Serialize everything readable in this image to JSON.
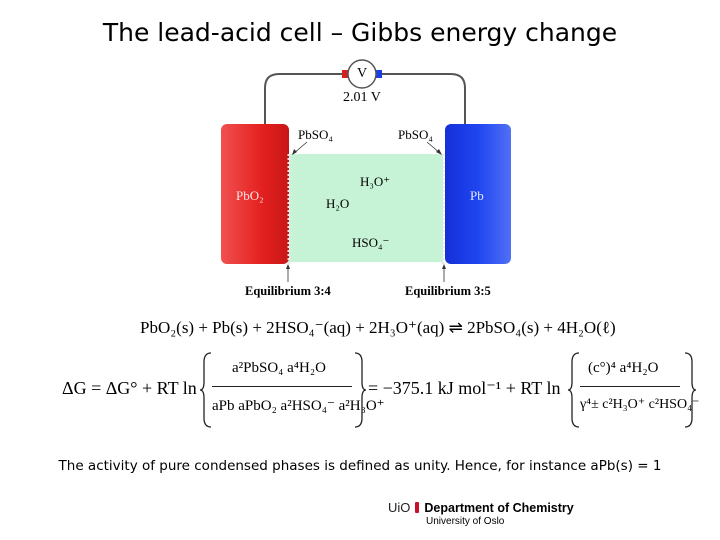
{
  "title": "The lead-acid cell – Gibbs energy change",
  "diagram": {
    "voltmeter_symbol": "V",
    "voltage": "2.01 V",
    "left_electrode": "PbO₂",
    "right_electrode": "Pb",
    "left_product": "PbSO₄",
    "right_product": "PbSO₄",
    "species": [
      "H₃O⁺",
      "H₂O",
      "HSO₄⁻"
    ],
    "left_equilibrium": "Equilibrium 3:4",
    "right_equilibrium": "Equilibrium 3:5",
    "colors": {
      "left": "#e8201f",
      "right": "#1a3ee8",
      "electrolyte": "#c6f2d6"
    }
  },
  "reaction": "PbO₂(s) + Pb(s) + 2HSO₄⁻(aq) + 2H₃O⁺(aq) ⇌ 2PbSO₄(s) + 4H₂O(ℓ)",
  "gibbs": {
    "lhs": "ΔG = ΔG° + RT ln",
    "numerator": "a²PbSO₄ a⁴H₂O",
    "denominator": "aPb aPbO₂ a²HSO₄⁻ a²H₃O⁺",
    "middle": "= −375.1 kJ mol⁻¹ + RT ln",
    "right_numerator": "(c°)⁴ a⁴H₂O",
    "right_denominator": "γ⁴± c²H₃O⁺ c²HSO₄⁻"
  },
  "note": "The activity of pure condensed phases is defined as unity. Hence, for instance aPb(s) = 1",
  "footer": {
    "logo": "UiO",
    "department": "Department of Chemistry",
    "university": "University of Oslo"
  }
}
